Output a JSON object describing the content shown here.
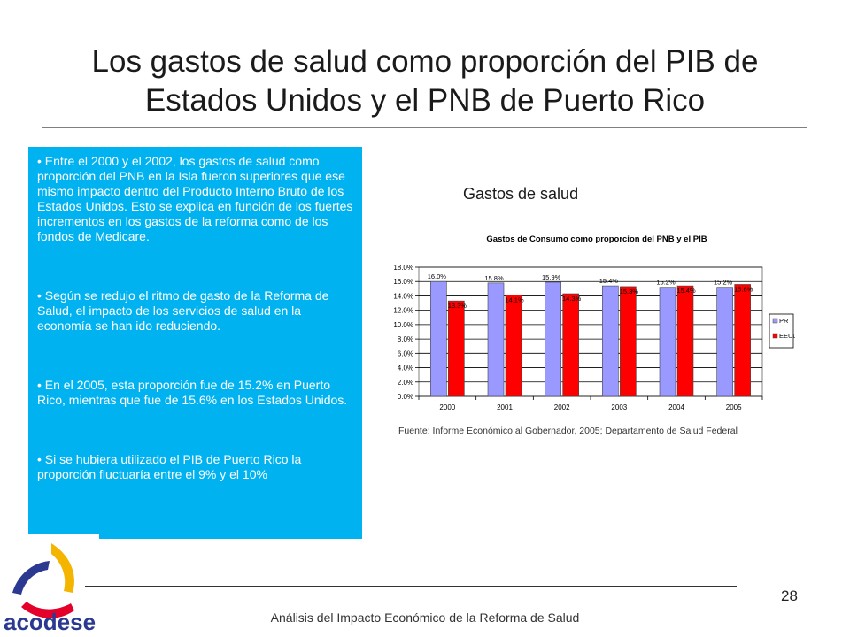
{
  "title": "Los gastos de salud como proporción del PIB de Estados Unidos y el PNB de Puerto Rico",
  "bullets": [
    "• Entre el 2000 y el 2002, los gastos de salud como proporción del PNB en la Isla fueron superiores que ese mismo impacto dentro del Producto Interno Bruto de los Estados Unidos. Esto se explica en función de los fuertes incrementos en los gastos de la reforma como de los fondos de Medicare.",
    "• Según se redujo el ritmo de gasto de la Reforma de Salud, el impacto de los servicios de salud en la economía  se han ido reduciendo.",
    "• En el 2005, esta proporción fue de 15.2% en Puerto Rico, mientras que fue de 15.6% en los Estados Unidos.",
    "• Si se hubiera utilizado el PIB de Puerto Rico la proporción fluctuaría entre el 9% y el 10%"
  ],
  "chart_heading": "Gastos de salud",
  "source": "Fuente: Informe Económico al Gobernador, 2005; Departamento de Salud Federal",
  "footer": "Análisis del Impacto Económico de la Reforma de Salud",
  "page_number": "28",
  "logo_text": "acodese",
  "chart_data": {
    "type": "bar",
    "title": "Gastos de Consumo como proporcion del PNB y el PIB",
    "categories": [
      "2000",
      "2001",
      "2002",
      "2003",
      "2004",
      "2005"
    ],
    "series": [
      {
        "name": "PR",
        "values": [
          16.0,
          15.8,
          15.9,
          15.4,
          15.2,
          15.2
        ],
        "labels": [
          "16.0%",
          "15.8%",
          "15.9%",
          "15.4%",
          "15.2%",
          "15.2%"
        ],
        "color": "#9999ff"
      },
      {
        "name": "EEUU",
        "values": [
          13.3,
          14.1,
          14.3,
          15.3,
          15.4,
          15.6
        ],
        "labels": [
          "13.3%",
          "14.1%",
          "14.3%",
          "15.3%",
          "15.4%",
          "15.6%"
        ],
        "color": "#ff0000"
      }
    ],
    "ylim": [
      0,
      18
    ],
    "yticks": [
      "0.0%",
      "2.0%",
      "4.0%",
      "6.0%",
      "8.0%",
      "10.0%",
      "12.0%",
      "14.0%",
      "16.0%",
      "18.0%"
    ],
    "grid": true,
    "legend": "right"
  }
}
